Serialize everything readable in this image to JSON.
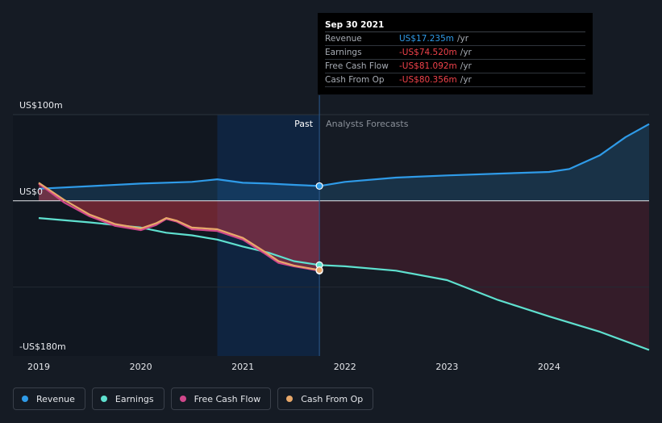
{
  "tooltip": {
    "date": "Sep 30 2021",
    "rows": [
      {
        "name": "Revenue",
        "value": "US$17.235m",
        "unit": "/yr",
        "color": "#2f9be8"
      },
      {
        "name": "Earnings",
        "value": "-US$74.520m",
        "unit": "/yr",
        "color": "#f0424a"
      },
      {
        "name": "Free Cash Flow",
        "value": "-US$81.092m",
        "unit": "/yr",
        "color": "#f0424a"
      },
      {
        "name": "Cash From Op",
        "value": "-US$80.356m",
        "unit": "/yr",
        "color": "#f0424a"
      }
    ]
  },
  "legend": [
    {
      "label": "Revenue",
      "color": "#2f9be8"
    },
    {
      "label": "Earnings",
      "color": "#5fe0cf"
    },
    {
      "label": "Free Cash Flow",
      "color": "#d0478b"
    },
    {
      "label": "Cash From Op",
      "color": "#e8a86a"
    }
  ],
  "chart_data": {
    "type": "line",
    "title": "",
    "xlabel": "",
    "ylabel": "",
    "x_range": [
      2019.0,
      2024.98
    ],
    "ylim": [
      -180,
      100
    ],
    "y_tick_labels": [
      {
        "value": 100,
        "label": "US$100m"
      },
      {
        "value": 0,
        "label": "US$0"
      },
      {
        "value": -180,
        "label": "-US$180m"
      }
    ],
    "x_ticks": [
      2019,
      2020,
      2021,
      2022,
      2023,
      2024
    ],
    "x_tick_labels": [
      "2019",
      "2020",
      "2021",
      "2022",
      "2023",
      "2024"
    ],
    "past_label": "Past",
    "forecast_label": "Analysts Forecasts",
    "past_start": 2020.75,
    "divider_x": 2021.75,
    "colors": {
      "Revenue": "#2f9be8",
      "Earnings": "#5fe0cf",
      "Free Cash Flow": "#d0478b",
      "Cash From Op": "#e8a86a"
    },
    "series": [
      {
        "name": "Revenue",
        "x": [
          2019.0,
          2019.5,
          2020.0,
          2020.5,
          2020.75,
          2021.0,
          2021.25,
          2021.5,
          2021.75,
          2022.0,
          2022.5,
          2023.0,
          2023.5,
          2024.0,
          2024.2,
          2024.5,
          2024.75,
          2024.98
        ],
        "values": [
          14,
          17,
          20,
          22,
          25,
          21,
          20,
          18.5,
          17.2,
          22,
          27,
          29.5,
          31.5,
          33.5,
          37,
          53,
          74,
          89
        ]
      },
      {
        "name": "Earnings",
        "x": [
          2019.0,
          2019.5,
          2020.0,
          2020.25,
          2020.5,
          2020.75,
          2021.0,
          2021.25,
          2021.5,
          2021.75,
          2022.0,
          2022.5,
          2023.0,
          2023.5,
          2024.0,
          2024.5,
          2024.98
        ],
        "values": [
          -20,
          -25,
          -31,
          -37,
          -40,
          -45,
          -53,
          -60,
          -70,
          -74.5,
          -76,
          -81,
          -92,
          -115,
          -134,
          -152,
          -173
        ]
      },
      {
        "name": "Free Cash Flow",
        "x": [
          2019.0,
          2019.25,
          2019.5,
          2019.75,
          2020.0,
          2020.15,
          2020.25,
          2020.35,
          2020.5,
          2020.75,
          2021.0,
          2021.2,
          2021.35,
          2021.5,
          2021.75
        ],
        "values": [
          20,
          -2,
          -18,
          -29,
          -34,
          -28,
          -21,
          -24,
          -33,
          -35,
          -45,
          -60,
          -72,
          -76,
          -81.1
        ]
      },
      {
        "name": "Cash From Op",
        "x": [
          2019.0,
          2019.25,
          2019.5,
          2019.75,
          2020.0,
          2020.15,
          2020.25,
          2020.35,
          2020.5,
          2020.75,
          2021.0,
          2021.2,
          2021.35,
          2021.5,
          2021.75
        ],
        "values": [
          21,
          1,
          -16,
          -27,
          -32,
          -26,
          -20,
          -23,
          -31,
          -33,
          -43,
          -58,
          -70,
          -75,
          -80.4
        ]
      }
    ]
  }
}
